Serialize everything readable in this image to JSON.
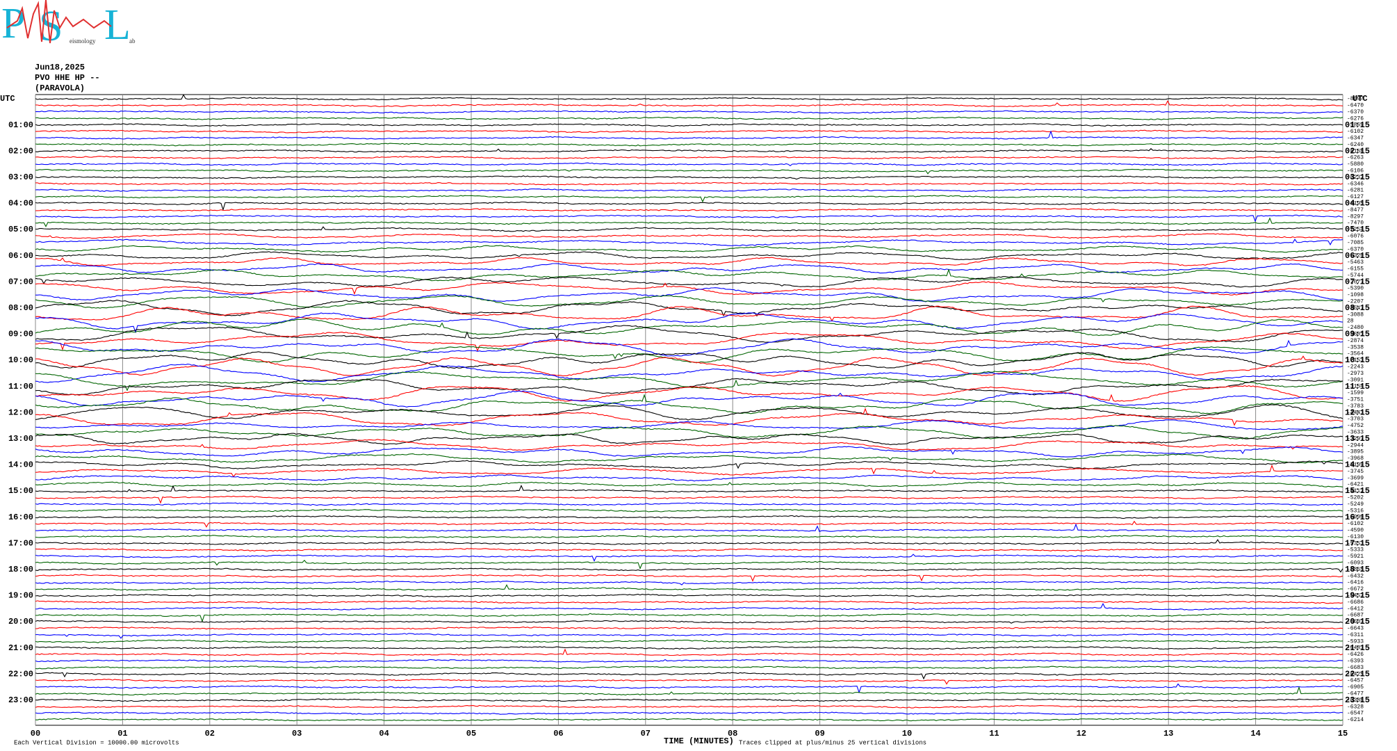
{
  "logo": {
    "letters": [
      "P",
      "S",
      "L"
    ],
    "small": [
      "eismology",
      "ab"
    ]
  },
  "header": {
    "date": "Jun18,2025",
    "station": "PVO HHE HP --",
    "site": "(PARAVOLA)"
  },
  "utc_label": "UTC",
  "left_hours": [
    "01:00",
    "02:00",
    "03:00",
    "04:00",
    "05:00",
    "06:00",
    "07:00",
    "08:00",
    "09:00",
    "10:00",
    "11:00",
    "12:00",
    "13:00",
    "14:00",
    "15:00",
    "16:00",
    "17:00",
    "18:00",
    "19:00",
    "20:00",
    "21:00",
    "22:00",
    "23:00"
  ],
  "right_hours": [
    "01:15",
    "02:15",
    "03:15",
    "04:15",
    "05:15",
    "06:15",
    "07:15",
    "08:15",
    "09:15",
    "10:15",
    "11:15",
    "12:15",
    "13:15",
    "14:15",
    "15:15",
    "16:15",
    "17:15",
    "18:15",
    "19:15",
    "20:15",
    "21:15",
    "22:15",
    "23:15"
  ],
  "trace_offsets": [
    "-8097",
    "-6470",
    "-6370",
    "-6276",
    "-5869",
    "-6102",
    "-6347",
    "-6240",
    "-6166",
    "-6263",
    "-5880",
    "-6106",
    "-6232",
    "-6346",
    "-6281",
    "-6127",
    "-6195",
    "-8477",
    "-8297",
    "-7470",
    "-7254",
    "-6076",
    "-7085",
    "-6370",
    "-5320",
    "-5463",
    "-6155",
    "-5744",
    "-2077",
    "-5390",
    "-1098",
    "-2207",
    "-3547",
    "-3088",
    "28",
    "-2480",
    "-3601",
    "-2874",
    "-3538",
    "-3564",
    "-2153",
    "-2243",
    "-2973",
    "-3091",
    "-3154",
    "-1599",
    "-3751",
    "-3783",
    "-4443",
    "-3703",
    "-4752",
    "-3633",
    "-3297",
    "-2944",
    "-3895",
    "-3968",
    "-5199",
    "-3745",
    "-3699",
    "-6421",
    "-4112",
    "-5202",
    "-5249",
    "-5316",
    "-5990",
    "-6102",
    "-4590",
    "-6130",
    "-5353",
    "-5333",
    "-5921",
    "-6093",
    "-5865",
    "-6432",
    "-6416",
    "-6672",
    "-6452",
    "-6686",
    "-6412",
    "-6687",
    "-6603",
    "-6643",
    "-6311",
    "-5933",
    "-6483",
    "-6426",
    "-6393",
    "-6683",
    "-6425",
    "-6457",
    "-6905",
    "-6477",
    "-6386",
    "-6328",
    "-6547",
    "-6214"
  ],
  "minutes": [
    "00",
    "01",
    "02",
    "03",
    "04",
    "05",
    "06",
    "07",
    "08",
    "09",
    "10",
    "11",
    "12",
    "13",
    "14",
    "15"
  ],
  "footer": {
    "scale": "Each Vertical Division = 10000.00 microvolts",
    "x_title": "TIME (MINUTES)",
    "clip": "Traces clipped at plus/minus 25 vertical divisions"
  },
  "trace_colors": [
    "#000000",
    "#ff0000",
    "#0000ff",
    "#006400"
  ]
}
